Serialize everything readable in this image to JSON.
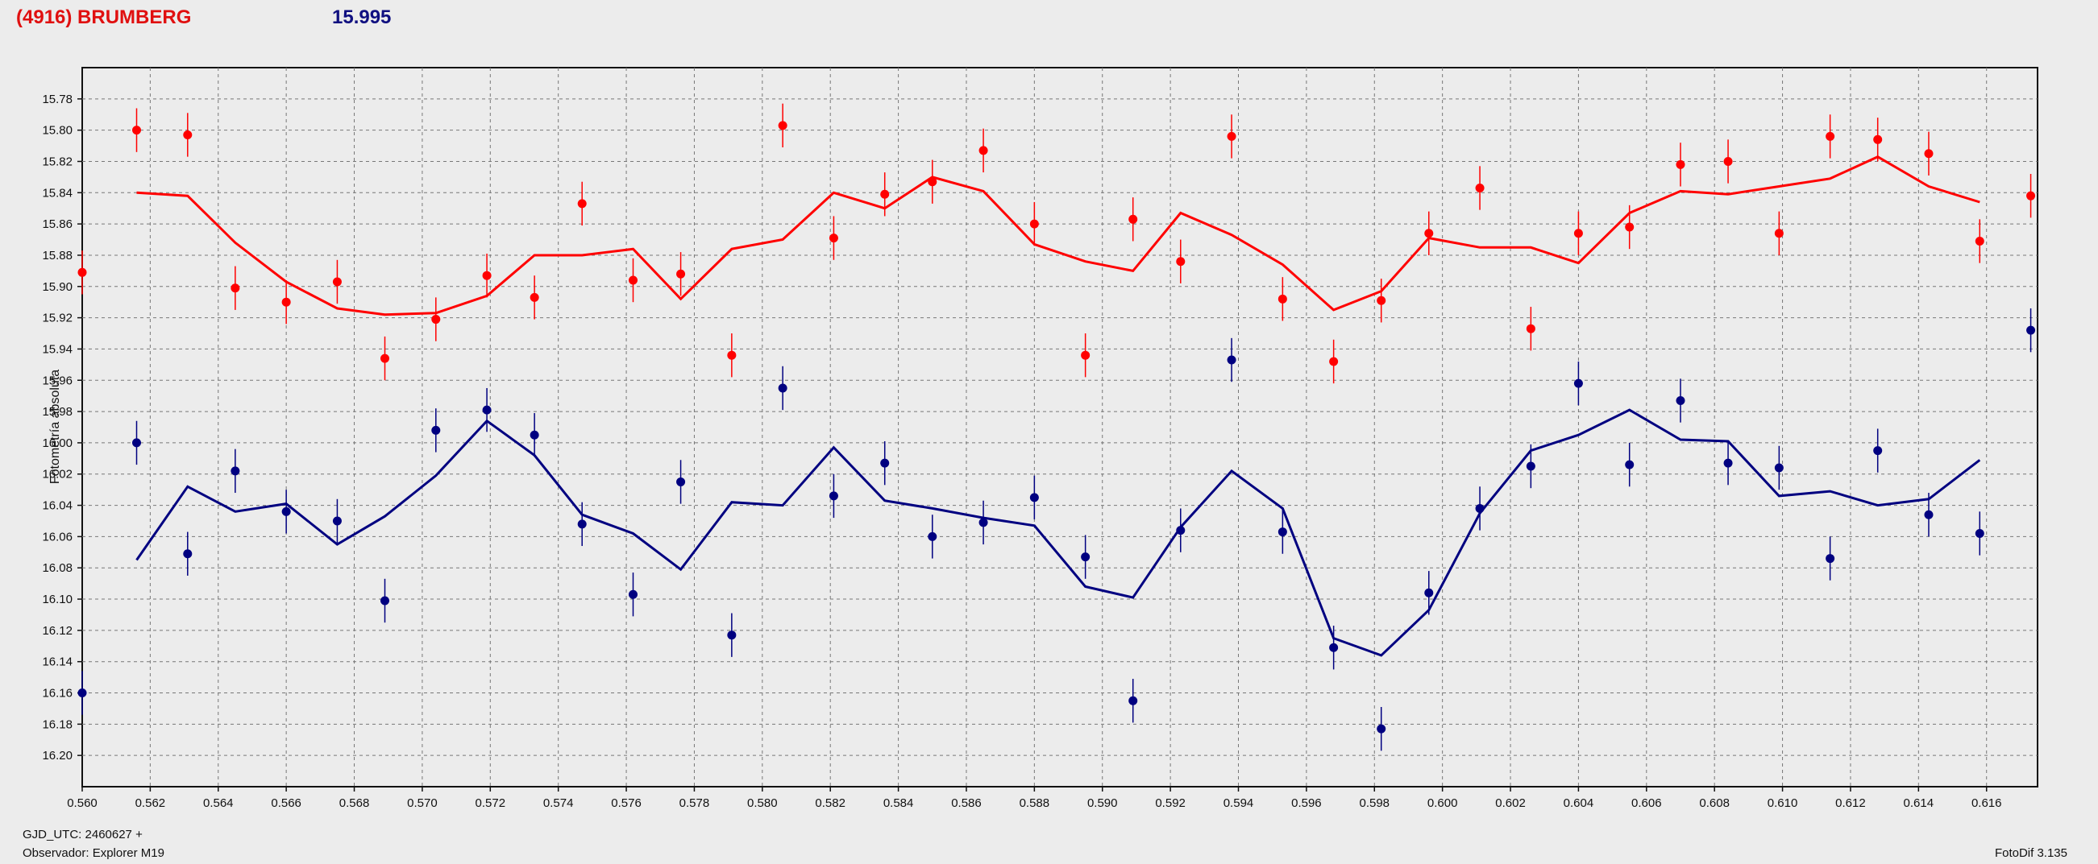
{
  "header": {
    "title": "(4916) BRUMBERG",
    "mean_value": "15.995"
  },
  "footer": {
    "jd_label": "GJD_UTC: 2460627 +",
    "observer": "Observador: Explorer M19",
    "software": "FotoDif 3.135"
  },
  "colors": {
    "red_series": "#ff0000",
    "blue_series": "#000080",
    "background": "#ececec",
    "plot_background": "#ececec",
    "grid": "#888888"
  },
  "chart_data": {
    "type": "scatter",
    "ylabel": "Fotometría absoluta",
    "xlabel": "",
    "xlim": [
      0.56,
      0.6175
    ],
    "ylim": [
      16.22,
      15.76
    ],
    "y_inverted": true,
    "grid": true,
    "x_ticks": [
      "0.560",
      "0.562",
      "0.564",
      "0.566",
      "0.568",
      "0.570",
      "0.572",
      "0.574",
      "0.576",
      "0.578",
      "0.580",
      "0.582",
      "0.584",
      "0.586",
      "0.588",
      "0.590",
      "0.592",
      "0.594",
      "0.596",
      "0.598",
      "0.600",
      "0.602",
      "0.604",
      "0.606",
      "0.608",
      "0.610",
      "0.612",
      "0.614",
      "0.616"
    ],
    "y_ticks": [
      "15.78",
      "15.80",
      "15.82",
      "15.84",
      "15.86",
      "15.88",
      "15.90",
      "15.92",
      "15.94",
      "15.96",
      "15.98",
      "16.00",
      "16.02",
      "16.04",
      "16.06",
      "16.08",
      "16.10",
      "16.12",
      "16.14",
      "16.16",
      "16.18",
      "16.20"
    ],
    "series": [
      {
        "color": "#ff0000",
        "points": [
          {
            "x": 0.56,
            "y": 15.891
          },
          {
            "x": 0.5616,
            "y": 15.8
          },
          {
            "x": 0.5631,
            "y": 15.803
          },
          {
            "x": 0.5645,
            "y": 15.901
          },
          {
            "x": 0.566,
            "y": 15.91
          },
          {
            "x": 0.5675,
            "y": 15.897
          },
          {
            "x": 0.5689,
            "y": 15.946
          },
          {
            "x": 0.5704,
            "y": 15.921
          },
          {
            "x": 0.5719,
            "y": 15.893
          },
          {
            "x": 0.5733,
            "y": 15.907
          },
          {
            "x": 0.5747,
            "y": 15.847
          },
          {
            "x": 0.5762,
            "y": 15.896
          },
          {
            "x": 0.5776,
            "y": 15.892
          },
          {
            "x": 0.5791,
            "y": 15.944
          },
          {
            "x": 0.5806,
            "y": 15.797
          },
          {
            "x": 0.5821,
            "y": 15.869
          },
          {
            "x": 0.5836,
            "y": 15.841
          },
          {
            "x": 0.585,
            "y": 15.833
          },
          {
            "x": 0.5865,
            "y": 15.813
          },
          {
            "x": 0.588,
            "y": 15.86
          },
          {
            "x": 0.5895,
            "y": 15.944
          },
          {
            "x": 0.5909,
            "y": 15.857
          },
          {
            "x": 0.5923,
            "y": 15.884
          },
          {
            "x": 0.5938,
            "y": 15.804
          },
          {
            "x": 0.5953,
            "y": 15.908
          },
          {
            "x": 0.5968,
            "y": 15.948
          },
          {
            "x": 0.5982,
            "y": 15.909
          },
          {
            "x": 0.5996,
            "y": 15.866
          },
          {
            "x": 0.6011,
            "y": 15.837
          },
          {
            "x": 0.6026,
            "y": 15.927
          },
          {
            "x": 0.604,
            "y": 15.866
          },
          {
            "x": 0.6055,
            "y": 15.862
          },
          {
            "x": 0.607,
            "y": 15.822
          },
          {
            "x": 0.6084,
            "y": 15.82
          },
          {
            "x": 0.6099,
            "y": 15.866
          },
          {
            "x": 0.6114,
            "y": 15.804
          },
          {
            "x": 0.6128,
            "y": 15.806
          },
          {
            "x": 0.6143,
            "y": 15.815
          },
          {
            "x": 0.6158,
            "y": 15.871
          },
          {
            "x": 0.6173,
            "y": 15.842
          }
        ],
        "fit": [
          {
            "x": 0.5616,
            "y": 15.84
          },
          {
            "x": 0.5631,
            "y": 15.842
          },
          {
            "x": 0.5645,
            "y": 15.872
          },
          {
            "x": 0.566,
            "y": 15.897
          },
          {
            "x": 0.5675,
            "y": 15.914
          },
          {
            "x": 0.5689,
            "y": 15.918
          },
          {
            "x": 0.5704,
            "y": 15.917
          },
          {
            "x": 0.5719,
            "y": 15.906
          },
          {
            "x": 0.5733,
            "y": 15.88
          },
          {
            "x": 0.5747,
            "y": 15.88
          },
          {
            "x": 0.5762,
            "y": 15.876
          },
          {
            "x": 0.5776,
            "y": 15.908
          },
          {
            "x": 0.5791,
            "y": 15.876
          },
          {
            "x": 0.5806,
            "y": 15.87
          },
          {
            "x": 0.5821,
            "y": 15.84
          },
          {
            "x": 0.5836,
            "y": 15.85
          },
          {
            "x": 0.585,
            "y": 15.83
          },
          {
            "x": 0.5865,
            "y": 15.839
          },
          {
            "x": 0.588,
            "y": 15.873
          },
          {
            "x": 0.5895,
            "y": 15.884
          },
          {
            "x": 0.5909,
            "y": 15.89
          },
          {
            "x": 0.5923,
            "y": 15.853
          },
          {
            "x": 0.5938,
            "y": 15.867
          },
          {
            "x": 0.5953,
            "y": 15.886
          },
          {
            "x": 0.5968,
            "y": 15.915
          },
          {
            "x": 0.5982,
            "y": 15.903
          },
          {
            "x": 0.5996,
            "y": 15.869
          },
          {
            "x": 0.6011,
            "y": 15.875
          },
          {
            "x": 0.6026,
            "y": 15.875
          },
          {
            "x": 0.604,
            "y": 15.885
          },
          {
            "x": 0.6055,
            "y": 15.853
          },
          {
            "x": 0.607,
            "y": 15.839
          },
          {
            "x": 0.6084,
            "y": 15.841
          },
          {
            "x": 0.6099,
            "y": 15.836
          },
          {
            "x": 0.6114,
            "y": 15.831
          },
          {
            "x": 0.6128,
            "y": 15.817
          },
          {
            "x": 0.6143,
            "y": 15.836
          },
          {
            "x": 0.6158,
            "y": 15.846
          }
        ]
      },
      {
        "color": "#000080",
        "points": [
          {
            "x": 0.56,
            "y": 16.16
          },
          {
            "x": 0.5616,
            "y": 16.0
          },
          {
            "x": 0.5631,
            "y": 16.071
          },
          {
            "x": 0.5645,
            "y": 16.018
          },
          {
            "x": 0.566,
            "y": 16.044
          },
          {
            "x": 0.5675,
            "y": 16.05
          },
          {
            "x": 0.5689,
            "y": 16.101
          },
          {
            "x": 0.5704,
            "y": 15.992
          },
          {
            "x": 0.5719,
            "y": 15.979
          },
          {
            "x": 0.5733,
            "y": 15.995
          },
          {
            "x": 0.5747,
            "y": 16.052
          },
          {
            "x": 0.5762,
            "y": 16.097
          },
          {
            "x": 0.5776,
            "y": 16.025
          },
          {
            "x": 0.5791,
            "y": 16.123
          },
          {
            "x": 0.5806,
            "y": 15.965
          },
          {
            "x": 0.5821,
            "y": 16.034
          },
          {
            "x": 0.5836,
            "y": 16.013
          },
          {
            "x": 0.585,
            "y": 16.06
          },
          {
            "x": 0.5865,
            "y": 16.051
          },
          {
            "x": 0.588,
            "y": 16.035
          },
          {
            "x": 0.5895,
            "y": 16.073
          },
          {
            "x": 0.5909,
            "y": 16.165
          },
          {
            "x": 0.5923,
            "y": 16.056
          },
          {
            "x": 0.5938,
            "y": 15.947
          },
          {
            "x": 0.5953,
            "y": 16.057
          },
          {
            "x": 0.5968,
            "y": 16.131
          },
          {
            "x": 0.5982,
            "y": 16.183
          },
          {
            "x": 0.5996,
            "y": 16.096
          },
          {
            "x": 0.6011,
            "y": 16.042
          },
          {
            "x": 0.6026,
            "y": 16.015
          },
          {
            "x": 0.604,
            "y": 15.962
          },
          {
            "x": 0.6055,
            "y": 16.014
          },
          {
            "x": 0.607,
            "y": 15.973
          },
          {
            "x": 0.6084,
            "y": 16.013
          },
          {
            "x": 0.6099,
            "y": 16.016
          },
          {
            "x": 0.6114,
            "y": 16.074
          },
          {
            "x": 0.6128,
            "y": 16.005
          },
          {
            "x": 0.6143,
            "y": 16.046
          },
          {
            "x": 0.6158,
            "y": 16.058
          },
          {
            "x": 0.6173,
            "y": 15.928
          }
        ],
        "fit": [
          {
            "x": 0.5616,
            "y": 16.075
          },
          {
            "x": 0.5631,
            "y": 16.028
          },
          {
            "x": 0.5645,
            "y": 16.044
          },
          {
            "x": 0.566,
            "y": 16.039
          },
          {
            "x": 0.5675,
            "y": 16.065
          },
          {
            "x": 0.5689,
            "y": 16.047
          },
          {
            "x": 0.5704,
            "y": 16.021
          },
          {
            "x": 0.5719,
            "y": 15.986
          },
          {
            "x": 0.5733,
            "y": 16.008
          },
          {
            "x": 0.5747,
            "y": 16.046
          },
          {
            "x": 0.5762,
            "y": 16.058
          },
          {
            "x": 0.5776,
            "y": 16.081
          },
          {
            "x": 0.5791,
            "y": 16.038
          },
          {
            "x": 0.5806,
            "y": 16.04
          },
          {
            "x": 0.5821,
            "y": 16.003
          },
          {
            "x": 0.5836,
            "y": 16.037
          },
          {
            "x": 0.585,
            "y": 16.042
          },
          {
            "x": 0.5865,
            "y": 16.048
          },
          {
            "x": 0.588,
            "y": 16.053
          },
          {
            "x": 0.5895,
            "y": 16.092
          },
          {
            "x": 0.5909,
            "y": 16.099
          },
          {
            "x": 0.5923,
            "y": 16.054
          },
          {
            "x": 0.5938,
            "y": 16.018
          },
          {
            "x": 0.5953,
            "y": 16.042
          },
          {
            "x": 0.5968,
            "y": 16.125
          },
          {
            "x": 0.5982,
            "y": 16.136
          },
          {
            "x": 0.5996,
            "y": 16.107
          },
          {
            "x": 0.6011,
            "y": 16.045
          },
          {
            "x": 0.6026,
            "y": 16.005
          },
          {
            "x": 0.604,
            "y": 15.995
          },
          {
            "x": 0.6055,
            "y": 15.979
          },
          {
            "x": 0.607,
            "y": 15.998
          },
          {
            "x": 0.6084,
            "y": 15.999
          },
          {
            "x": 0.6099,
            "y": 16.034
          },
          {
            "x": 0.6114,
            "y": 16.031
          },
          {
            "x": 0.6128,
            "y": 16.04
          },
          {
            "x": 0.6143,
            "y": 16.036
          },
          {
            "x": 0.6158,
            "y": 16.011
          }
        ]
      }
    ],
    "error_bar_half": 0.014
  }
}
